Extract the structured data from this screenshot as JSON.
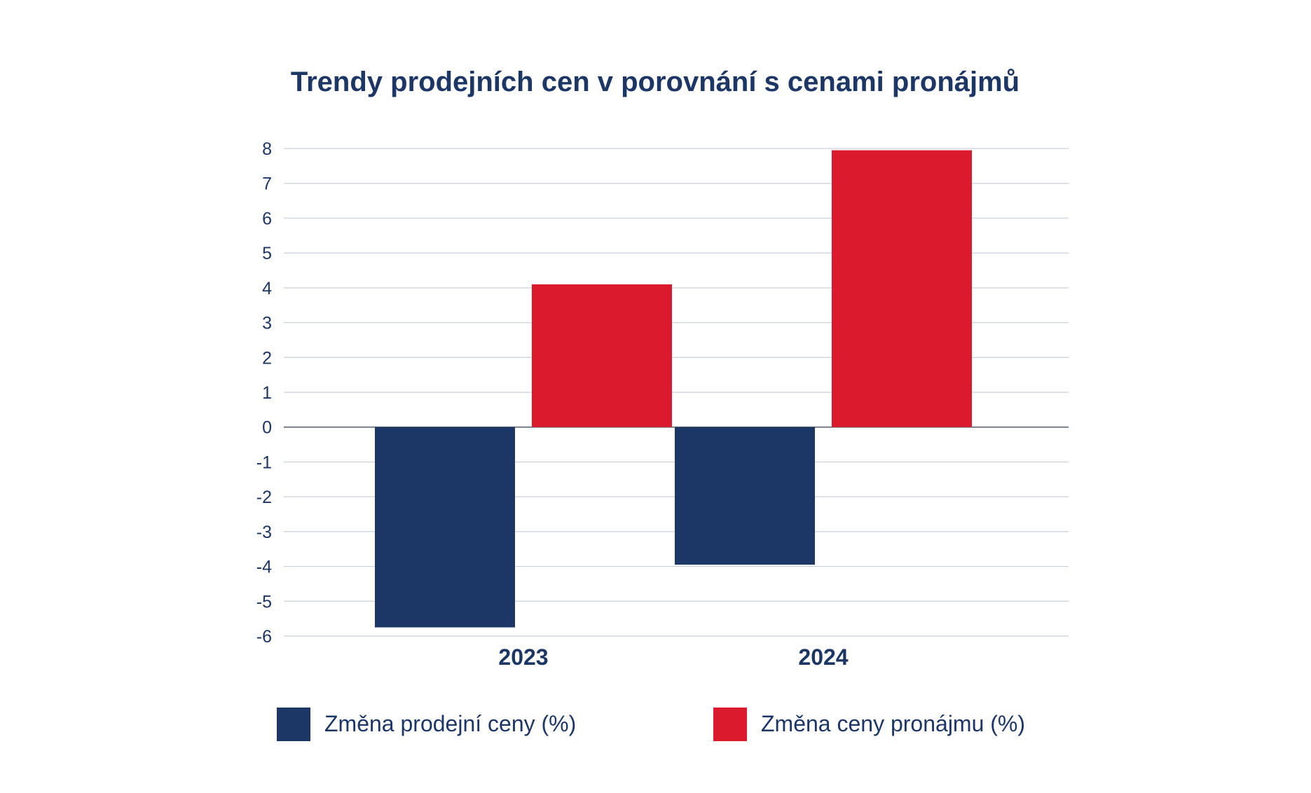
{
  "chart_data": {
    "type": "bar",
    "title": "Trendy prodejních cen v porovnání s cenami pronájmů",
    "categories": [
      "2023",
      "2024"
    ],
    "series": [
      {
        "name": "Změna prodejní ceny (%)",
        "values": [
          -5.75,
          -3.95
        ],
        "color": "#1c3666"
      },
      {
        "name": "Změna ceny pronájmu (%)",
        "values": [
          4.1,
          7.95
        ],
        "color": "#db1a2e"
      }
    ],
    "xlabel": "",
    "ylabel": "",
    "ylim": [
      -6,
      8
    ],
    "yticks": [
      "8",
      "7",
      "6",
      "5",
      "4",
      "3",
      "2",
      "1",
      "0",
      "-1",
      "-2",
      "-3",
      "-4",
      "-5",
      "-6"
    ],
    "grid": true,
    "legend_position": "bottom",
    "colors": {
      "text": "#1c3666",
      "grid": "#c9cfdc",
      "zero_line": "#5a6378"
    }
  }
}
